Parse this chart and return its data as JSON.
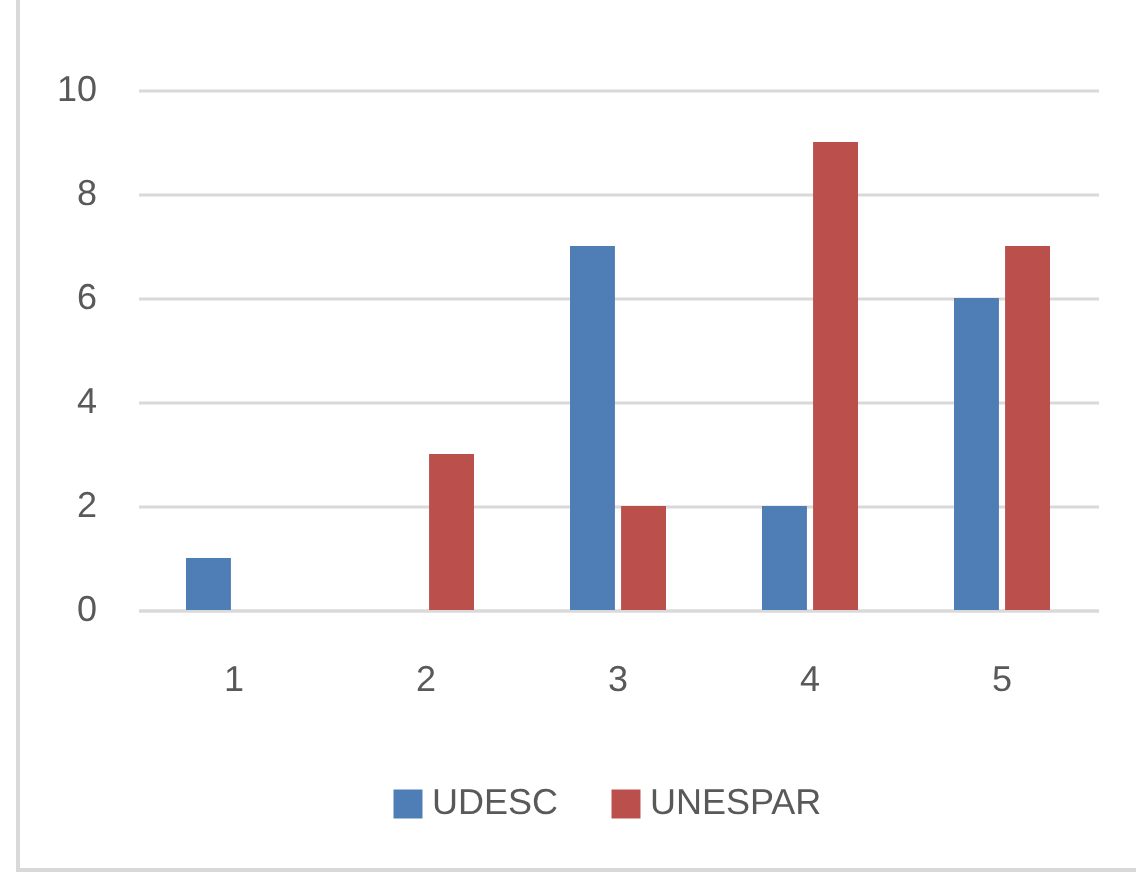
{
  "chart_data": {
    "type": "bar",
    "categories": [
      "1",
      "2",
      "3",
      "4",
      "5"
    ],
    "series": [
      {
        "name": "UDESC",
        "color": "#4f7db5",
        "values": [
          1,
          0,
          7,
          2,
          6
        ]
      },
      {
        "name": "UNESPAR",
        "color": "#ba4f4c",
        "values": [
          0,
          3,
          2,
          9,
          7
        ]
      }
    ],
    "ylim": [
      0,
      10
    ],
    "yticks": [
      0,
      2,
      4,
      6,
      8,
      10
    ],
    "grid": "y",
    "legend": "bottom"
  }
}
